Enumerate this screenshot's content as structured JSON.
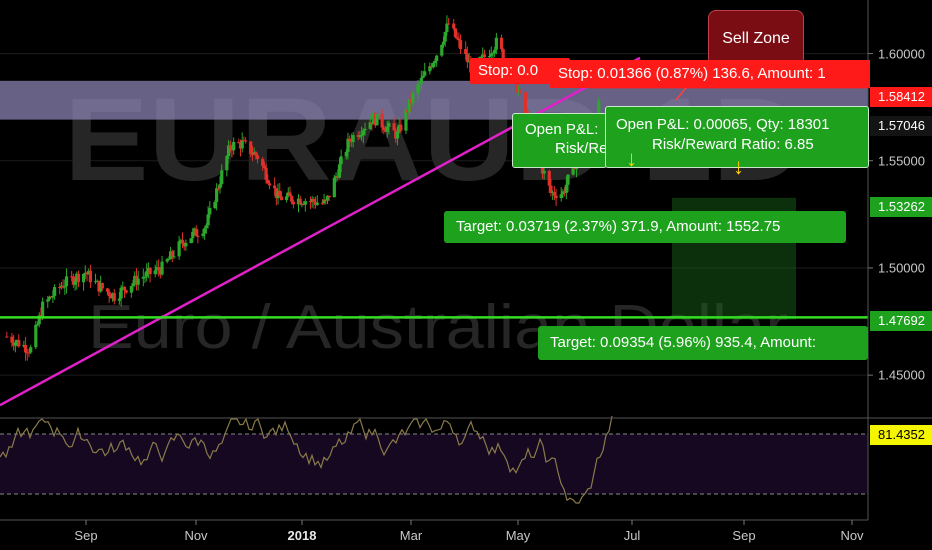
{
  "watermark": {
    "symbol": "EURAUD 1D",
    "name": "Euro / Australian Dollar"
  },
  "zone": {
    "label": "Sell Zone"
  },
  "price_labels": {
    "stop_level": "1.58412",
    "entry_level": "1.57046",
    "entry2_level": "1.53262",
    "target2_level": "1.47692",
    "rsi_value": "81.4352"
  },
  "boxes": {
    "stop_short": "Stop: 0.0",
    "stop_long": "Stop: 0.01366 (0.87%) 136.6, Amount: 1",
    "pnl_short_line1": "Open P&L:",
    "pnl_short_line2": "Risk/Re",
    "pnl_long_line1": "Open P&L: 0.00065, Qty: 18301",
    "pnl_long_line2": "Risk/Reward Ratio: 6.85",
    "target1": "Target: 0.03719 (2.37%) 371.9, Amount: 1552.75",
    "target2": "Target: 0.09354 (5.96%) 935.4, Amount: "
  },
  "colors": {
    "bull": "#2ca82c",
    "bear": "#e0302a",
    "trendline": "#e020c8",
    "support": "#33dd22",
    "zone": "#8e87b8",
    "stop_box": "#ff1a1a",
    "target_box": "#1ea21e",
    "rsi": "#8a7a4a",
    "rsi_bg": "#150820"
  },
  "chart_data": {
    "type": "candlestick",
    "symbol": "EURAUD",
    "timeframe": "1D",
    "x_ticks": [
      "Sep",
      "Nov",
      "2018",
      "Mar",
      "May",
      "Jul",
      "Sep",
      "Nov"
    ],
    "y_ticks": [
      1.45,
      1.5,
      1.55,
      1.6
    ],
    "y_tick_labels": [
      "1.45000",
      "1.50000",
      "1.55000",
      "1.60000"
    ],
    "ylim": [
      1.43,
      1.625
    ],
    "price_path": [
      {
        "date": "2017-07-14",
        "close": 1.468
      },
      {
        "date": "2017-07-28",
        "close": 1.462
      },
      {
        "date": "2017-08-04",
        "close": 1.482
      },
      {
        "date": "2017-08-15",
        "close": 1.492
      },
      {
        "date": "2017-08-29",
        "close": 1.498
      },
      {
        "date": "2017-09-05",
        "close": 1.492
      },
      {
        "date": "2017-09-15",
        "close": 1.487
      },
      {
        "date": "2017-09-29",
        "close": 1.495
      },
      {
        "date": "2017-10-13",
        "close": 1.5
      },
      {
        "date": "2017-10-25",
        "close": 1.512
      },
      {
        "date": "2017-11-08",
        "close": 1.52
      },
      {
        "date": "2017-11-22",
        "close": 1.557
      },
      {
        "date": "2017-11-29",
        "close": 1.558
      },
      {
        "date": "2017-12-08",
        "close": 1.552
      },
      {
        "date": "2017-12-20",
        "close": 1.533
      },
      {
        "date": "2018-01-03",
        "close": 1.532
      },
      {
        "date": "2018-01-17",
        "close": 1.53
      },
      {
        "date": "2018-01-31",
        "close": 1.56
      },
      {
        "date": "2018-02-14",
        "close": 1.57
      },
      {
        "date": "2018-02-28",
        "close": 1.562
      },
      {
        "date": "2018-03-09",
        "close": 1.58
      },
      {
        "date": "2018-03-23",
        "close": 1.6
      },
      {
        "date": "2018-03-30",
        "close": 1.614
      },
      {
        "date": "2018-04-13",
        "close": 1.592
      },
      {
        "date": "2018-04-27",
        "close": 1.605
      },
      {
        "date": "2018-05-07",
        "close": 1.59
      },
      {
        "date": "2018-05-21",
        "close": 1.553
      },
      {
        "date": "2018-05-29",
        "close": 1.535
      },
      {
        "date": "2018-06-05",
        "close": 1.535
      },
      {
        "date": "2018-06-15",
        "close": 1.555
      },
      {
        "date": "2018-06-26",
        "close": 1.575
      }
    ],
    "levels": {
      "stop": 1.58412,
      "entry": 1.57046,
      "entry2": 1.53262,
      "target2": 1.47692,
      "sell_zone": [
        1.5692,
        1.5873
      ]
    },
    "rsi": {
      "last": 81.4352,
      "upper": 70,
      "lower": 30
    }
  }
}
